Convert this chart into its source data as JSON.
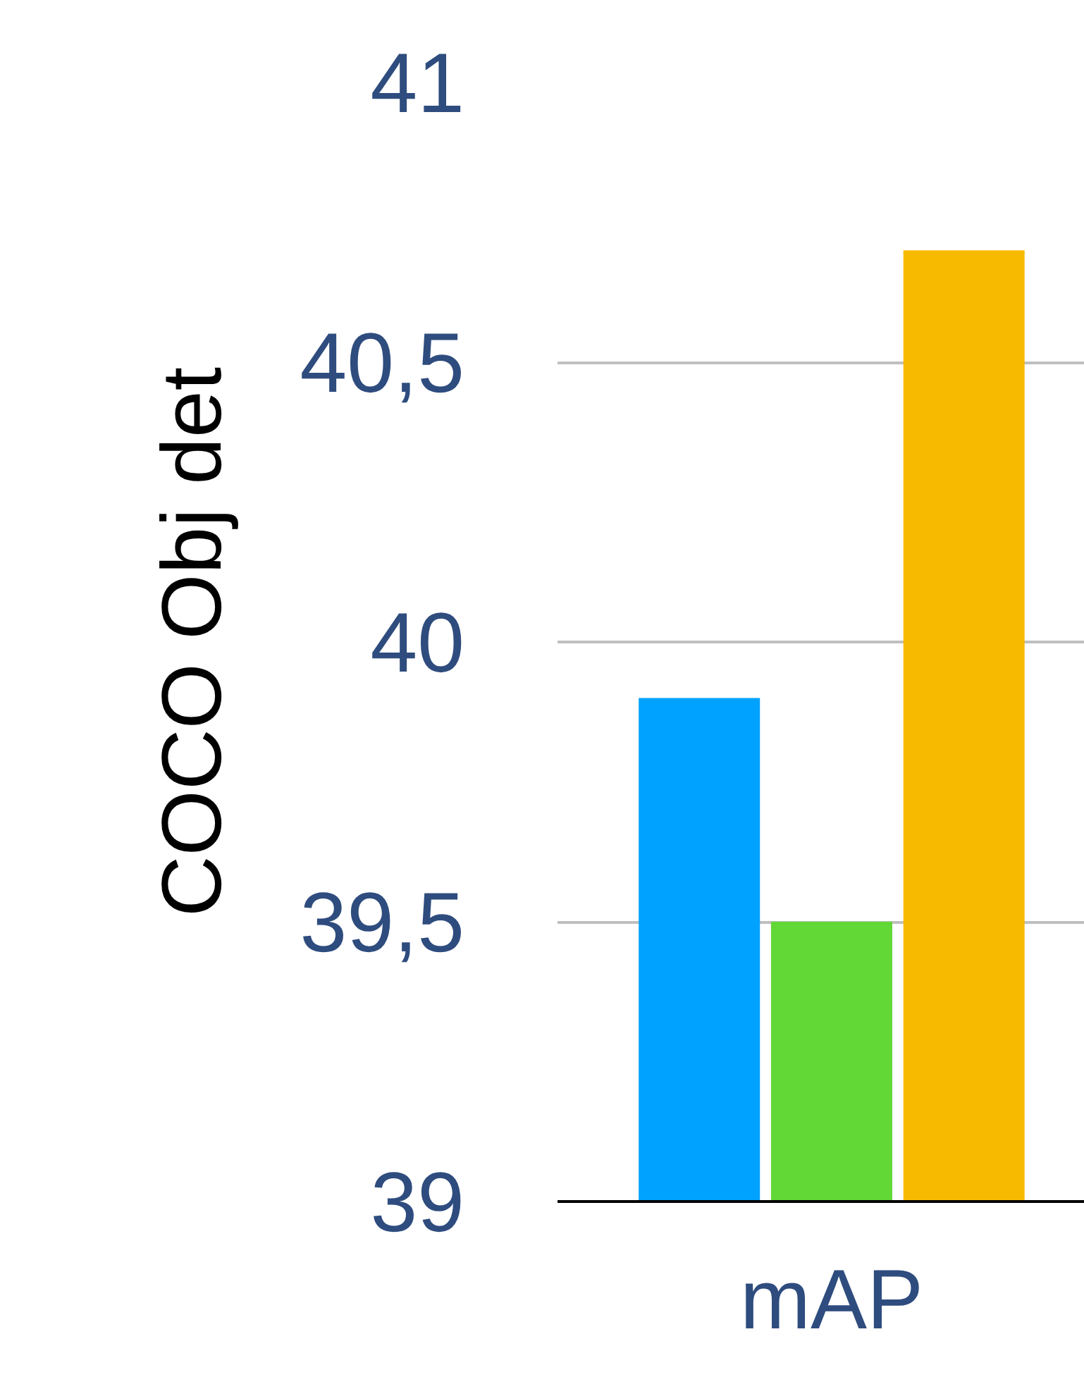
{
  "chart_data": {
    "type": "bar",
    "ylabel": "COCO Obj det",
    "categories": [
      "mAP"
    ],
    "series": [
      {
        "color": "#00a2ff",
        "values": [
          39.9
        ]
      },
      {
        "color": "#61d836",
        "values": [
          39.5
        ]
      },
      {
        "color": "#f8ba00",
        "values": [
          40.7
        ]
      }
    ],
    "ylim": [
      39,
      41
    ],
    "yticks": [
      39,
      {
        "value": 39.5,
        "label": "39,5"
      },
      40,
      {
        "value": 40.5,
        "label": "40,5"
      },
      41
    ],
    "grid": "y"
  }
}
